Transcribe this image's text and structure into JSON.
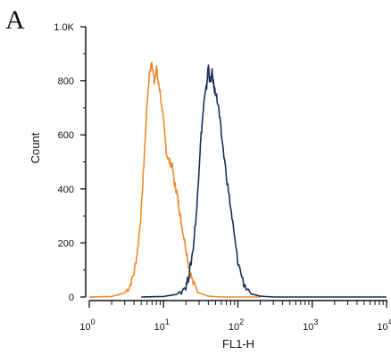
{
  "panel_label": "A",
  "chart_data": {
    "type": "line",
    "title": "",
    "xlabel": "FL1-H",
    "ylabel": "Count",
    "x_scale": "log",
    "xlim": [
      1,
      10000
    ],
    "ylim": [
      0,
      1000
    ],
    "grid": false,
    "y_ticks": [
      {
        "value": 0,
        "label": "0"
      },
      {
        "value": 200,
        "label": "200"
      },
      {
        "value": 400,
        "label": "400"
      },
      {
        "value": 600,
        "label": "600"
      },
      {
        "value": 800,
        "label": "800"
      },
      {
        "value": 1000,
        "label": "1.0K"
      }
    ],
    "x_ticks": [
      {
        "value": 1,
        "base": "10",
        "exp": "0"
      },
      {
        "value": 10,
        "base": "10",
        "exp": "1"
      },
      {
        "value": 100,
        "base": "10",
        "exp": "2"
      },
      {
        "value": 1000,
        "base": "10",
        "exp": "3"
      },
      {
        "value": 10000,
        "base": "10",
        "exp": "4"
      }
    ],
    "series": [
      {
        "color": "#f08a2c",
        "x": [
          1,
          2,
          3,
          3.5,
          4,
          4.5,
          5,
          5.5,
          6,
          6.5,
          7,
          7.5,
          8,
          8.5,
          9,
          10,
          11,
          12,
          13,
          14,
          15,
          16,
          17,
          18,
          20,
          22,
          25,
          30,
          40,
          60,
          100,
          150,
          200
        ],
        "y": [
          0,
          2,
          15,
          40,
          90,
          180,
          320,
          520,
          720,
          840,
          860,
          800,
          850,
          790,
          760,
          640,
          530,
          500,
          490,
          420,
          390,
          340,
          290,
          250,
          180,
          110,
          50,
          15,
          3,
          0,
          0,
          0,
          0
        ]
      },
      {
        "color": "#1c2f57",
        "x": [
          5,
          10,
          15,
          20,
          22,
          25,
          28,
          30,
          32,
          35,
          38,
          40,
          42,
          45,
          48,
          50,
          55,
          60,
          70,
          80,
          90,
          100,
          120,
          150,
          200,
          300,
          1000,
          10000
        ],
        "y": [
          0,
          2,
          10,
          40,
          80,
          180,
          330,
          480,
          600,
          720,
          780,
          860,
          790,
          830,
          770,
          760,
          700,
          600,
          450,
          330,
          220,
          130,
          50,
          12,
          3,
          0,
          0,
          0
        ]
      }
    ]
  }
}
